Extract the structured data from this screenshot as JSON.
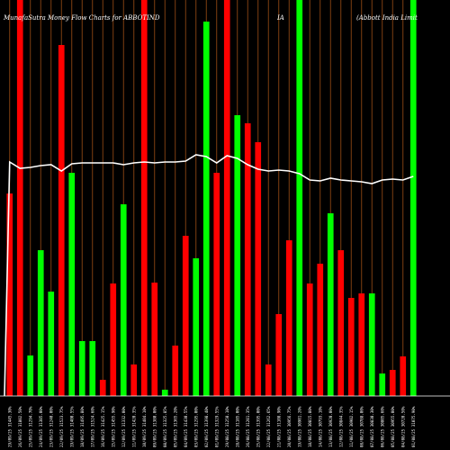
{
  "header": {
    "left": "MunafaSutra  Money Flow  Charts for ABBOTIND",
    "middle": "IA",
    "right": "(Abbott India  Limit"
  },
  "colors": {
    "background": "#000000",
    "grid": "#8b4513",
    "up": "#00ff00",
    "down": "#ff0000",
    "line": "#ffffff"
  },
  "chart_data": {
    "type": "bar",
    "categories": [
      "29/09/2025",
      "26/09/2025",
      "25/09/2025",
      "24/09/2025",
      "23/09/2025",
      "22/09/2025",
      "19/09/2025",
      "18/09/2025",
      "17/09/2025",
      "16/09/2025",
      "15/09/2025",
      "12/09/2025",
      "11/09/2025",
      "10/09/2025",
      "09/09/2025",
      "08/09/2025",
      "05/09/2025",
      "04/09/2025",
      "03/09/2025",
      "02/09/2025",
      "01/09/2025",
      "29/08/2025",
      "28/08/2025",
      "26/08/2025",
      "25/08/2025",
      "22/08/2025",
      "21/08/2025",
      "20/08/2025",
      "19/08/2025",
      "18/08/2025",
      "14/08/2025",
      "13/08/2025",
      "12/08/2025",
      "11/08/2025",
      "08/08/2025",
      "07/08/2025",
      "06/08/2025",
      "05/08/2025",
      "04/08/2025",
      "01/08/2025"
    ],
    "tick_labels": [
      "29/09/25 31445.30%",
      "26/09/25 31802.50%",
      "25/09/25 31294.70%",
      "24/09/25 31385.00%",
      "23/09/25 31240.00%",
      "22/09/25 31523.75%",
      "19/09/25 31400.55%",
      "18/09/25 31495.80%",
      "17/09/25 31524.60%",
      "16/09/25 31425.15%",
      "15/09/25 31455.90%",
      "12/09/25 31332.00%",
      "11/09/25 31420.35%",
      "10/09/25 31404.10%",
      "09/09/25 31380.00%",
      "08/09/25 31325.85%",
      "05/09/25 31365.20%",
      "04/09/25 31430.55%",
      "03/09/25 31295.00%",
      "02/09/25 31398.40%",
      "01/09/25 31329.55%",
      "29/08/25 31250.10%",
      "28/08/25 31185.00%",
      "26/08/25 31201.35%",
      "25/08/25 31395.00%",
      "22/08/25 31262.65%",
      "21/08/25 31108.90%",
      "20/08/25 30956.75%",
      "19/08/25 30901.20%",
      "18/08/25 30815.80%",
      "14/08/25 30793.10%",
      "13/08/25 30920.00%",
      "12/08/25 30844.35%",
      "11/08/25 30902.15%",
      "08/08/25 30788.00%",
      "07/08/25 30830.30%",
      "06/08/25 30805.60%",
      "05/08/25 30955.00%",
      "04/08/25 30720.50%",
      "01/08/25 31075.90%"
    ],
    "colors": [
      "red",
      "red",
      "green",
      "green",
      "green",
      "red",
      "green",
      "green",
      "green",
      "red",
      "red",
      "green",
      "red",
      "red",
      "red",
      "green",
      "red",
      "red",
      "green",
      "green",
      "red",
      "red",
      "green",
      "red",
      "red",
      "red",
      "red",
      "red",
      "green",
      "red",
      "red",
      "green",
      "red",
      "red",
      "red",
      "green",
      "green",
      "red",
      "red",
      "green"
    ],
    "values": [
      225,
      440,
      45,
      162,
      116,
      390,
      248,
      61,
      61,
      18,
      125,
      213,
      35,
      440,
      126,
      7,
      56,
      178,
      153,
      416,
      248,
      440,
      312,
      303,
      282,
      35,
      91,
      173,
      440,
      125,
      147,
      203,
      162,
      109,
      114,
      114,
      25,
      29,
      44,
      440
    ],
    "line": [
      260,
      253,
      254,
      256,
      257,
      250,
      258,
      259,
      259,
      259,
      259,
      257,
      259,
      260,
      259,
      260,
      260,
      261,
      268,
      266,
      259,
      267,
      264,
      257,
      252,
      250,
      251,
      250,
      247,
      240,
      239,
      242,
      240,
      239,
      238,
      236,
      240,
      241,
      240,
      244
    ],
    "ylim": [
      0,
      440
    ],
    "grid": true
  }
}
